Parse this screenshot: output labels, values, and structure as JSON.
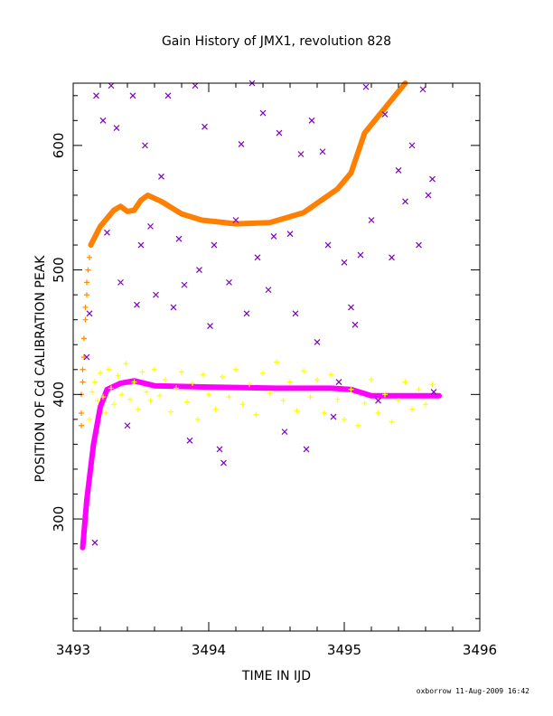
{
  "chart_data": {
    "type": "scatter",
    "title": "Gain History of JMX1, revolution 828",
    "xlabel": "TIME IN IJD",
    "ylabel": "POSITION OF Cd CALIBRATION PEAK",
    "xlim": [
      3493,
      3496
    ],
    "ylim": [
      210,
      650
    ],
    "xticks": [
      "3493",
      "3494",
      "3495",
      "3496"
    ],
    "yticks": [
      "300",
      "400",
      "500",
      "600"
    ],
    "grid": false,
    "series": [
      {
        "marker": "+",
        "color": "#ff8c00",
        "points": [
          [
            3493.06,
            400
          ],
          [
            3493.06,
            385
          ],
          [
            3493.06,
            375
          ],
          [
            3493.07,
            420
          ],
          [
            3493.07,
            410
          ],
          [
            3493.08,
            430
          ],
          [
            3493.08,
            445
          ],
          [
            3493.09,
            460
          ],
          [
            3493.09,
            470
          ],
          [
            3493.1,
            480
          ],
          [
            3493.1,
            490
          ],
          [
            3493.11,
            500
          ],
          [
            3493.12,
            510
          ],
          [
            3493.13,
            520
          ]
        ]
      },
      {
        "marker": "line",
        "color": "#ff7f00",
        "points": [
          [
            3493.13,
            520
          ],
          [
            3493.2,
            535
          ],
          [
            3493.3,
            548
          ],
          [
            3493.35,
            551
          ],
          [
            3493.4,
            547
          ],
          [
            3493.45,
            548
          ],
          [
            3493.5,
            556
          ],
          [
            3493.55,
            560
          ],
          [
            3493.65,
            555
          ],
          [
            3493.8,
            545
          ],
          [
            3493.95,
            540
          ],
          [
            3494.2,
            537
          ],
          [
            3494.45,
            538
          ],
          [
            3494.7,
            546
          ],
          [
            3494.95,
            565
          ],
          [
            3495.05,
            578
          ],
          [
            3495.15,
            610
          ],
          [
            3495.3,
            630
          ],
          [
            3495.45,
            650
          ]
        ]
      },
      {
        "marker": "line",
        "color": "#ff00ff",
        "points": [
          [
            3493.07,
            277
          ],
          [
            3493.1,
            315
          ],
          [
            3493.15,
            360
          ],
          [
            3493.2,
            390
          ],
          [
            3493.25,
            404
          ],
          [
            3493.35,
            409
          ],
          [
            3493.45,
            411
          ],
          [
            3493.6,
            407
          ],
          [
            3494.0,
            406
          ],
          [
            3494.5,
            405
          ],
          [
            3494.9,
            405
          ],
          [
            3495.05,
            404
          ],
          [
            3495.2,
            399
          ],
          [
            3495.7,
            399
          ]
        ]
      },
      {
        "marker": "x",
        "color": "#8000c0",
        "points": [
          [
            3493.1,
            430
          ],
          [
            3493.12,
            465
          ],
          [
            3493.16,
            281
          ],
          [
            3493.17,
            640
          ],
          [
            3493.22,
            620
          ],
          [
            3493.25,
            530
          ],
          [
            3493.28,
            648
          ],
          [
            3493.32,
            614
          ],
          [
            3493.35,
            490
          ],
          [
            3493.4,
            375
          ],
          [
            3493.44,
            640
          ],
          [
            3493.47,
            472
          ],
          [
            3493.5,
            520
          ],
          [
            3493.53,
            600
          ],
          [
            3493.57,
            535
          ],
          [
            3493.61,
            480
          ],
          [
            3493.65,
            575
          ],
          [
            3493.7,
            640
          ],
          [
            3493.74,
            470
          ],
          [
            3493.78,
            525
          ],
          [
            3493.82,
            488
          ],
          [
            3493.86,
            363
          ],
          [
            3493.9,
            648
          ],
          [
            3493.93,
            500
          ],
          [
            3493.97,
            615
          ],
          [
            3494.01,
            455
          ],
          [
            3494.04,
            520
          ],
          [
            3494.08,
            356
          ],
          [
            3494.11,
            345
          ],
          [
            3494.15,
            490
          ],
          [
            3494.2,
            540
          ],
          [
            3494.24,
            601
          ],
          [
            3494.28,
            465
          ],
          [
            3494.32,
            650
          ],
          [
            3494.36,
            510
          ],
          [
            3494.4,
            626
          ],
          [
            3494.44,
            484
          ],
          [
            3494.48,
            527
          ],
          [
            3494.52,
            610
          ],
          [
            3494.56,
            370
          ],
          [
            3494.6,
            529
          ],
          [
            3494.64,
            465
          ],
          [
            3494.68,
            593
          ],
          [
            3494.72,
            356
          ],
          [
            3494.76,
            620
          ],
          [
            3494.8,
            442
          ],
          [
            3494.84,
            595
          ],
          [
            3494.88,
            520
          ],
          [
            3494.92,
            382
          ],
          [
            3494.96,
            410
          ],
          [
            3495.0,
            506
          ],
          [
            3495.05,
            470
          ],
          [
            3495.08,
            456
          ],
          [
            3495.12,
            512
          ],
          [
            3495.16,
            647
          ],
          [
            3495.2,
            540
          ],
          [
            3495.25,
            395
          ],
          [
            3495.3,
            625
          ],
          [
            3495.35,
            510
          ],
          [
            3495.4,
            580
          ],
          [
            3495.45,
            555
          ],
          [
            3495.5,
            600
          ],
          [
            3495.55,
            520
          ],
          [
            3495.58,
            645
          ],
          [
            3495.62,
            560
          ],
          [
            3495.65,
            573
          ],
          [
            3495.66,
            402
          ]
        ]
      },
      {
        "marker": "+",
        "color": "#ffff00",
        "points": [
          [
            3493.12,
            380
          ],
          [
            3493.14,
            402
          ],
          [
            3493.16,
            410
          ],
          [
            3493.18,
            395
          ],
          [
            3493.2,
            417
          ],
          [
            3493.22,
            398
          ],
          [
            3493.24,
            385
          ],
          [
            3493.26,
            420
          ],
          [
            3493.28,
            405
          ],
          [
            3493.3,
            392
          ],
          [
            3493.33,
            415
          ],
          [
            3493.36,
            400
          ],
          [
            3493.39,
            425
          ],
          [
            3493.42,
            396
          ],
          [
            3493.45,
            410
          ],
          [
            3493.48,
            388
          ],
          [
            3493.51,
            418
          ],
          [
            3493.54,
            402
          ],
          [
            3493.57,
            395
          ],
          [
            3493.6,
            420
          ],
          [
            3493.64,
            399
          ],
          [
            3493.68,
            412
          ],
          [
            3493.72,
            386
          ],
          [
            3493.76,
            405
          ],
          [
            3493.8,
            418
          ],
          [
            3493.84,
            394
          ],
          [
            3493.88,
            409
          ],
          [
            3493.92,
            380
          ],
          [
            3493.96,
            416
          ],
          [
            3494.0,
            400
          ],
          [
            3494.05,
            388
          ],
          [
            3494.1,
            414
          ],
          [
            3494.15,
            398
          ],
          [
            3494.2,
            420
          ],
          [
            3494.25,
            392
          ],
          [
            3494.3,
            408
          ],
          [
            3494.35,
            384
          ],
          [
            3494.4,
            417
          ],
          [
            3494.45,
            401
          ],
          [
            3494.5,
            426
          ],
          [
            3494.55,
            395
          ],
          [
            3494.6,
            410
          ],
          [
            3494.65,
            387
          ],
          [
            3494.7,
            419
          ],
          [
            3494.75,
            398
          ],
          [
            3494.8,
            412
          ],
          [
            3494.85,
            385
          ],
          [
            3494.9,
            416
          ],
          [
            3494.95,
            396
          ],
          [
            3495.0,
            380
          ],
          [
            3495.05,
            404
          ],
          [
            3495.1,
            375
          ],
          [
            3495.15,
            393
          ],
          [
            3495.2,
            412
          ],
          [
            3495.25,
            385
          ],
          [
            3495.3,
            400
          ],
          [
            3495.35,
            378
          ],
          [
            3495.4,
            395
          ],
          [
            3495.45,
            410
          ],
          [
            3495.5,
            388
          ],
          [
            3495.55,
            404
          ],
          [
            3495.6,
            392
          ],
          [
            3495.65,
            408
          ]
        ]
      }
    ]
  },
  "footer": "oxborrow 11-Aug-2009 16:42"
}
